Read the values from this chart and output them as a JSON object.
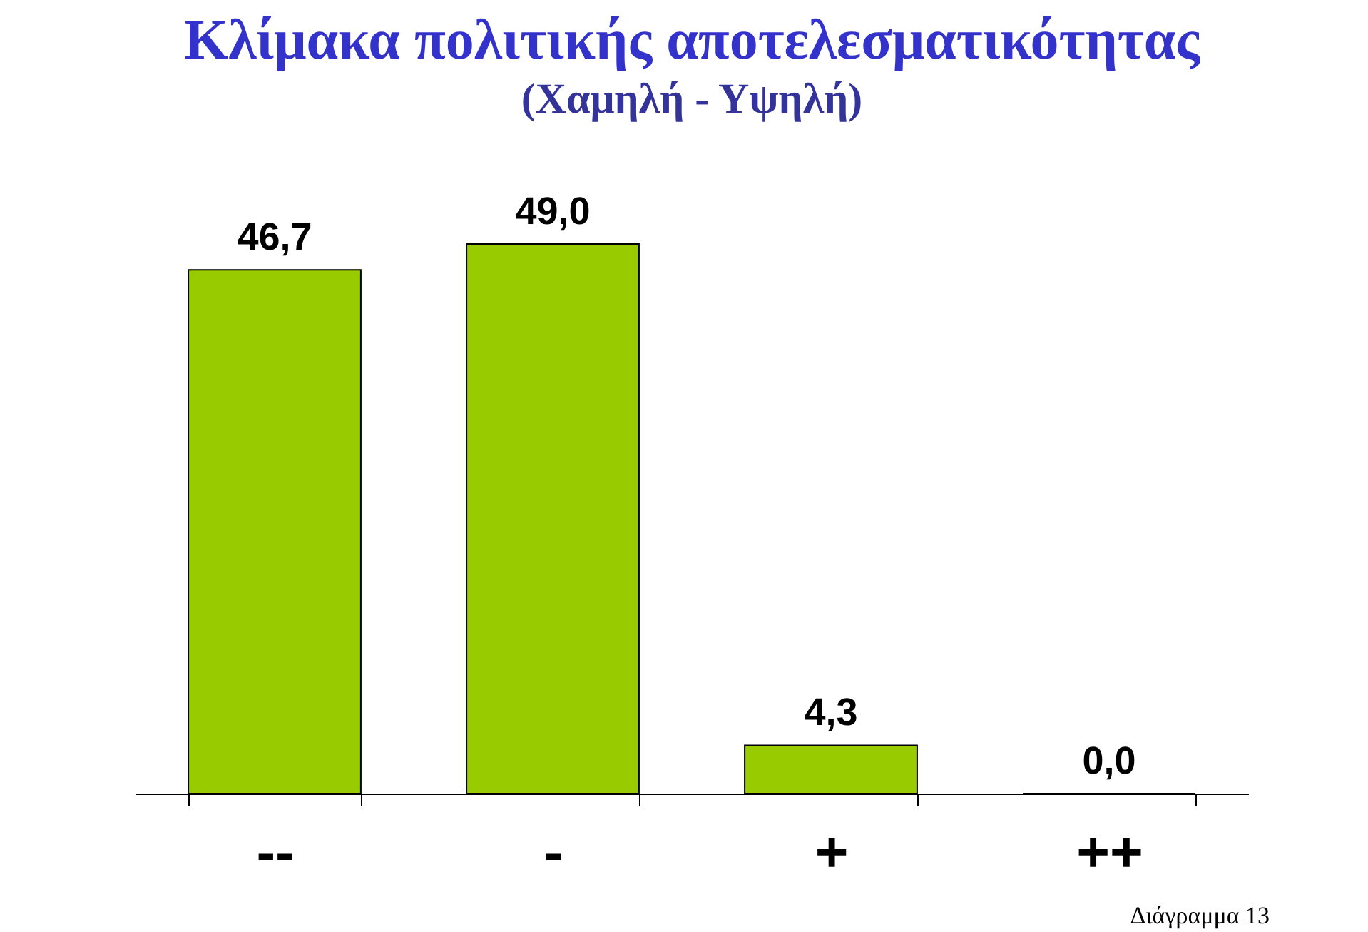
{
  "chart_data": {
    "type": "bar",
    "title": "Κλίμακα πολιτικής αποτελεσματικότητας",
    "subtitle": "(Χαμηλή - Υψηλή)",
    "categories": [
      "--",
      "-",
      "+",
      "++"
    ],
    "values": [
      46.7,
      49.0,
      4.3,
      0.0
    ],
    "value_labels": [
      "46,7",
      "49,0",
      "4,3",
      "0,0"
    ],
    "color": "#99cc00",
    "annotations": [
      "Διάγραμμα 13"
    ]
  }
}
